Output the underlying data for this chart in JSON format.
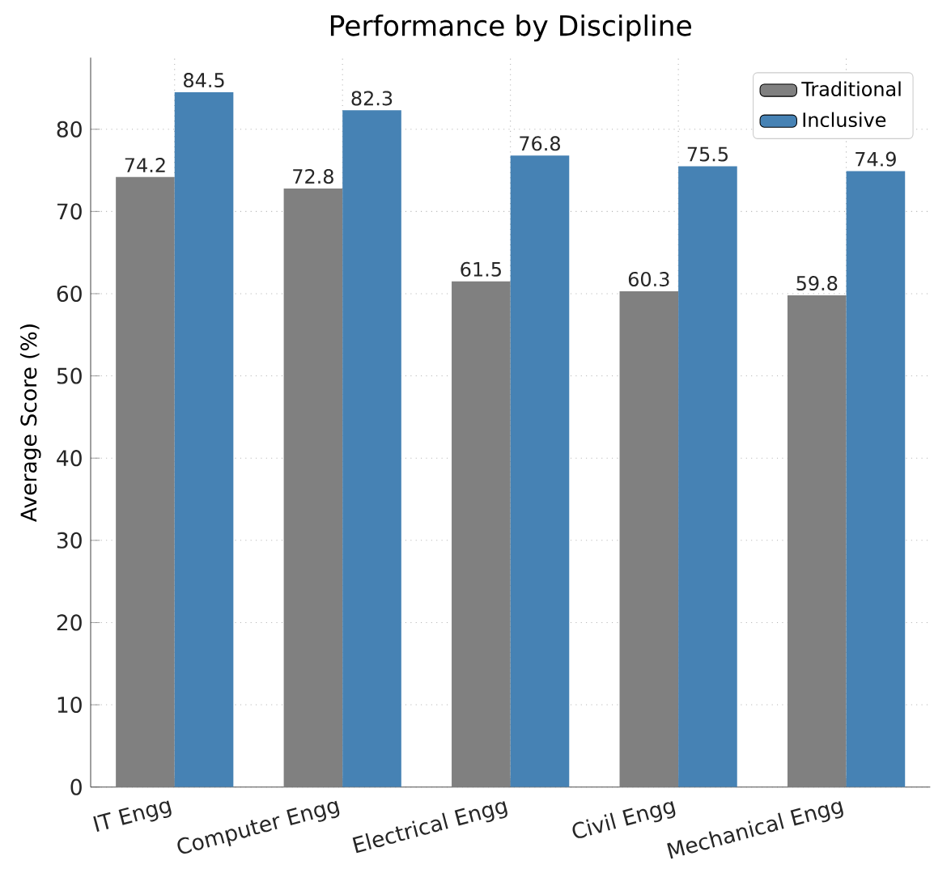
{
  "chart_data": {
    "type": "bar",
    "title": "Performance by Discipline",
    "ylabel": "Average Score (%)",
    "categories": [
      "IT Engg",
      "Computer Engg",
      "Electrical Engg",
      "Civil Engg",
      "Mechanical Engg"
    ],
    "series": [
      {
        "name": "Traditional",
        "color": "#808080",
        "values": [
          74.2,
          72.8,
          61.5,
          60.3,
          59.8
        ]
      },
      {
        "name": "Inclusive",
        "color": "#4682b4",
        "values": [
          84.5,
          82.3,
          76.8,
          75.5,
          74.9
        ]
      }
    ],
    "ylim": [
      0,
      88.7
    ],
    "yticks": [
      0,
      10,
      20,
      30,
      40,
      50,
      60,
      70,
      80
    ],
    "grid": true,
    "legend": "top right",
    "data_labels": true
  }
}
